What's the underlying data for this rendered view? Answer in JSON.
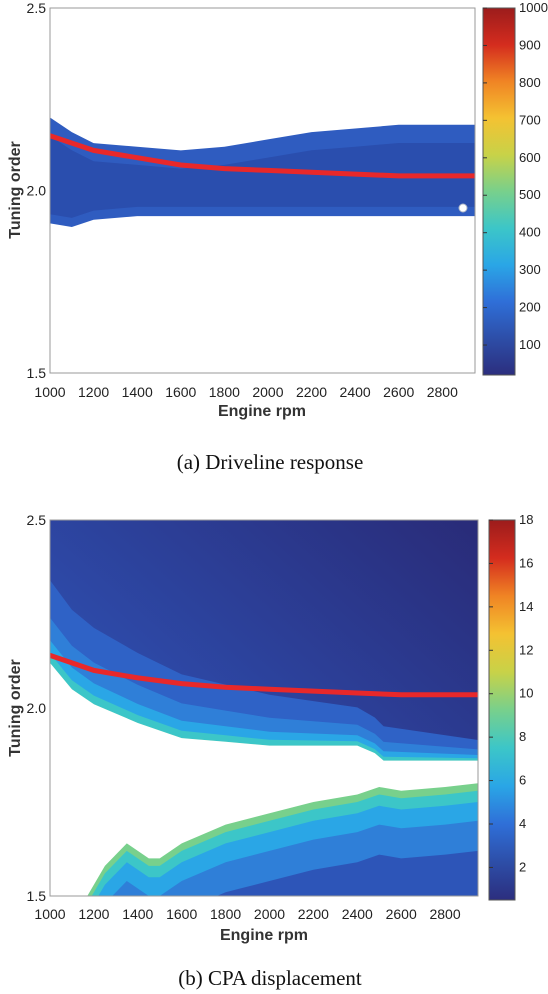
{
  "colors": {
    "ridge": "#e8282a",
    "cmap": [
      "#2c2e7e",
      "#2d4ea8",
      "#2f6fd8",
      "#2aa6e6",
      "#3cc6c8",
      "#78d08c",
      "#c8d248",
      "#f4c232",
      "#f08424",
      "#d42c1e",
      "#9c1c1c"
    ]
  },
  "chart_data": [
    {
      "type": "heatmap",
      "caption": "(a) Driveline response",
      "xlabel": "Engine rpm",
      "ylabel": "Tuning order",
      "xlim": [
        1000,
        2950
      ],
      "ylim": [
        1.5,
        2.5
      ],
      "xticks": [
        "1000",
        "1200",
        "1400",
        "1600",
        "1800",
        "2000",
        "2200",
        "2400",
        "2600",
        "2800"
      ],
      "yticks": [
        "1.5",
        "2.0",
        "2.5"
      ],
      "colorbar": {
        "range": [
          20,
          1000
        ],
        "ticks": [
          "100",
          "200",
          "300",
          "400",
          "500",
          "600",
          "700",
          "800",
          "900",
          "1000"
        ]
      },
      "band_upper": [
        [
          1000,
          2.2
        ],
        [
          1100,
          2.16
        ],
        [
          1200,
          2.13
        ],
        [
          1400,
          2.12
        ],
        [
          1600,
          2.11
        ],
        [
          1800,
          2.12
        ],
        [
          2000,
          2.14
        ],
        [
          2200,
          2.16
        ],
        [
          2400,
          2.17
        ],
        [
          2600,
          2.18
        ],
        [
          2950,
          2.18
        ]
      ],
      "band_lower": [
        [
          1000,
          1.91
        ],
        [
          1100,
          1.9
        ],
        [
          1200,
          1.92
        ],
        [
          1400,
          1.93
        ],
        [
          1600,
          1.93
        ],
        [
          1800,
          1.93
        ],
        [
          2000,
          1.93
        ],
        [
          2200,
          1.93
        ],
        [
          2400,
          1.93
        ],
        [
          2600,
          1.93
        ],
        [
          2950,
          1.93
        ]
      ],
      "ridge_line": [
        [
          1000,
          2.15
        ],
        [
          1200,
          2.11
        ],
        [
          1400,
          2.09
        ],
        [
          1600,
          2.07
        ],
        [
          1800,
          2.06
        ],
        [
          2000,
          2.055
        ],
        [
          2200,
          2.05
        ],
        [
          2400,
          2.045
        ],
        [
          2600,
          2.04
        ],
        [
          2800,
          2.04
        ],
        [
          2950,
          2.04
        ]
      ]
    },
    {
      "type": "heatmap",
      "caption": "(b) CPA displacement",
      "xlabel": "Engine rpm",
      "ylabel": "Tuning order",
      "xlim": [
        1000,
        2950
      ],
      "ylim": [
        1.5,
        2.5
      ],
      "xticks": [
        "1000",
        "1200",
        "1400",
        "1600",
        "1800",
        "2000",
        "2200",
        "2400",
        "2600",
        "2800"
      ],
      "yticks": [
        "1.5",
        "2.0",
        "2.5"
      ],
      "colorbar": {
        "range": [
          0.5,
          18
        ],
        "ticks": [
          "2",
          "4",
          "6",
          "8",
          "10",
          "12",
          "14",
          "16",
          "18"
        ]
      },
      "gap_upper_edge": [
        [
          1000,
          2.12
        ],
        [
          1100,
          2.05
        ],
        [
          1200,
          2.01
        ],
        [
          1400,
          1.96
        ],
        [
          1600,
          1.92
        ],
        [
          1800,
          1.91
        ],
        [
          2000,
          1.9
        ],
        [
          2200,
          1.9
        ],
        [
          2400,
          1.9
        ],
        [
          2480,
          1.88
        ],
        [
          2520,
          1.86
        ],
        [
          2950,
          1.86
        ]
      ],
      "gap_lower_edge": [
        [
          1170,
          1.5
        ],
        [
          1250,
          1.58
        ],
        [
          1350,
          1.64
        ],
        [
          1450,
          1.6
        ],
        [
          1500,
          1.6
        ],
        [
          1600,
          1.64
        ],
        [
          1800,
          1.69
        ],
        [
          2000,
          1.72
        ],
        [
          2200,
          1.75
        ],
        [
          2400,
          1.77
        ],
        [
          2500,
          1.79
        ],
        [
          2600,
          1.78
        ],
        [
          2800,
          1.79
        ],
        [
          2950,
          1.8
        ]
      ],
      "ridge_line": [
        [
          1000,
          2.14
        ],
        [
          1200,
          2.1
        ],
        [
          1400,
          2.08
        ],
        [
          1600,
          2.065
        ],
        [
          1800,
          2.055
        ],
        [
          2000,
          2.05
        ],
        [
          2200,
          2.045
        ],
        [
          2400,
          2.04
        ],
        [
          2600,
          2.035
        ],
        [
          2800,
          2.035
        ],
        [
          2950,
          2.035
        ]
      ]
    }
  ]
}
